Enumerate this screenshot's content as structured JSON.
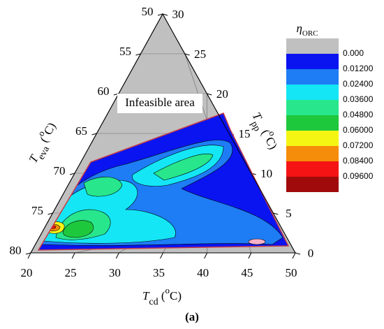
{
  "chart_data": {
    "type": "ternary-contour",
    "axes": {
      "left": {
        "label": [
          "T",
          "eva",
          " (",
          "o",
          "C)"
        ],
        "lim": [
          50,
          80
        ],
        "ticks": [
          50,
          55,
          60,
          65,
          70,
          75,
          80
        ]
      },
      "right": {
        "label": [
          "T",
          "pp",
          " (",
          "o",
          "C)"
        ],
        "lim": [
          30,
          0
        ],
        "ticks": [
          30,
          25,
          20,
          15,
          10,
          5,
          0
        ]
      },
      "bottom": {
        "label": [
          "T",
          "cd",
          " (",
          "o",
          "C)"
        ],
        "lim": [
          20,
          50
        ],
        "ticks": [
          20,
          25,
          30,
          35,
          40,
          45,
          50
        ]
      }
    },
    "grid": true,
    "colorbar_title": [
      "η",
      "ORC"
    ],
    "levels": [
      {
        "value": 0,
        "label": "0.000"
      },
      {
        "value": 0.012,
        "label": "0.01200"
      },
      {
        "value": 0.024,
        "label": "0.02400"
      },
      {
        "value": 0.036,
        "label": "0.03600"
      },
      {
        "value": 0.048,
        "label": "0.04800"
      },
      {
        "value": 0.06,
        "label": "0.06000"
      },
      {
        "value": 0.072,
        "label": "0.07200"
      },
      {
        "value": 0.084,
        "label": "0.08400"
      },
      {
        "value": 0.096,
        "label": "0.09600"
      }
    ],
    "level_colors": [
      "#c0c0c0",
      "#0a14f0",
      "#1e7cf5",
      "#14e6f5",
      "#28e68c",
      "#1ec83c",
      "#f5f514",
      "#f58c0a",
      "#f51414",
      "#a00a0a"
    ],
    "boundary_color": "#c83c46",
    "annotation": "Infeasible area",
    "caption": "(a)"
  }
}
